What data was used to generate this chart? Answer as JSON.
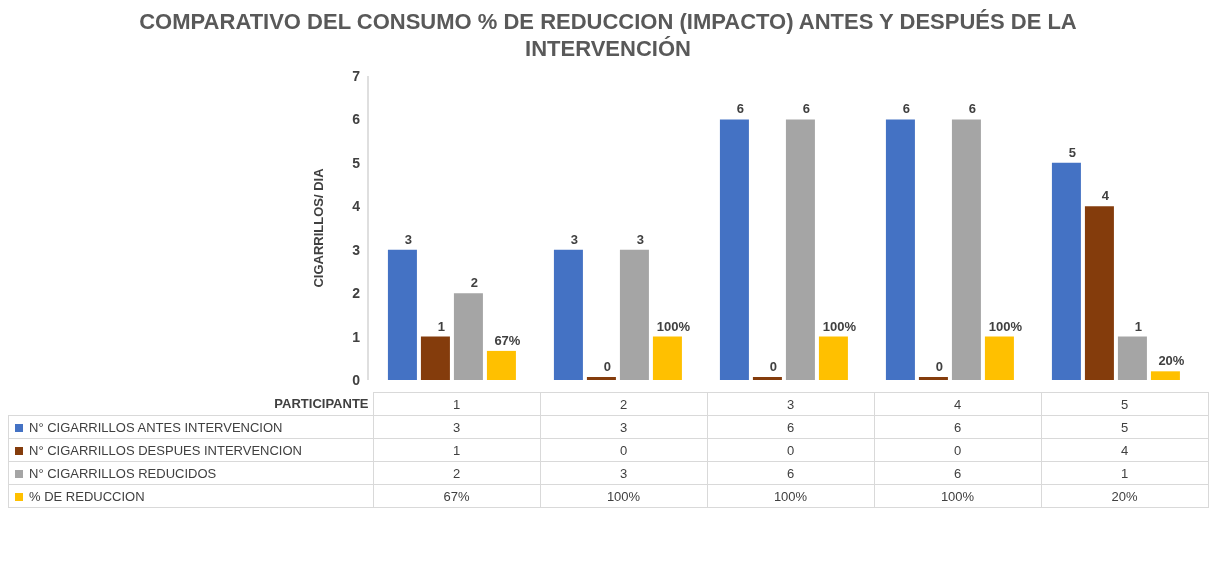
{
  "chart_data": {
    "type": "bar",
    "title": "COMPARATIVO DEL CONSUMO % DE REDUCCION (IMPACTO) ANTES Y DESPUÉS DE LA INTERVENCIÓN",
    "xlabel": "PARTICIPANTE",
    "ylabel": "CIGARRILLOS/ DIA",
    "categories": [
      "1",
      "2",
      "3",
      "4",
      "5"
    ],
    "series": [
      {
        "name": "N° CIGARRILLOS ANTES INTERVENCION",
        "color": "#4472c4",
        "values": [
          3,
          3,
          6,
          6,
          5
        ],
        "value_labels": [
          "3",
          "3",
          "6",
          "6",
          "5"
        ]
      },
      {
        "name": "N° CIGARRILLOS DESPUES INTERVENCION",
        "color": "#843c0c",
        "values": [
          1,
          0,
          0,
          0,
          4
        ],
        "value_labels": [
          "1",
          "0",
          "0",
          "0",
          "4"
        ]
      },
      {
        "name": "N° CIGARRILLOS REDUCIDOS",
        "color": "#a5a5a5",
        "values": [
          2,
          3,
          6,
          6,
          1
        ],
        "value_labels": [
          "2",
          "3",
          "6",
          "6",
          "1"
        ]
      },
      {
        "name": "% DE REDUCCION",
        "color": "#ffc000",
        "values": [
          0.67,
          1,
          1,
          1,
          0.2
        ],
        "value_labels": [
          "67%",
          "100%",
          "100%",
          "100%",
          "20%"
        ]
      }
    ],
    "ylim": [
      0,
      7
    ],
    "yticks": [
      0,
      1,
      2,
      3,
      4,
      5,
      6,
      7
    ],
    "grid": false,
    "legend": "bottom"
  }
}
